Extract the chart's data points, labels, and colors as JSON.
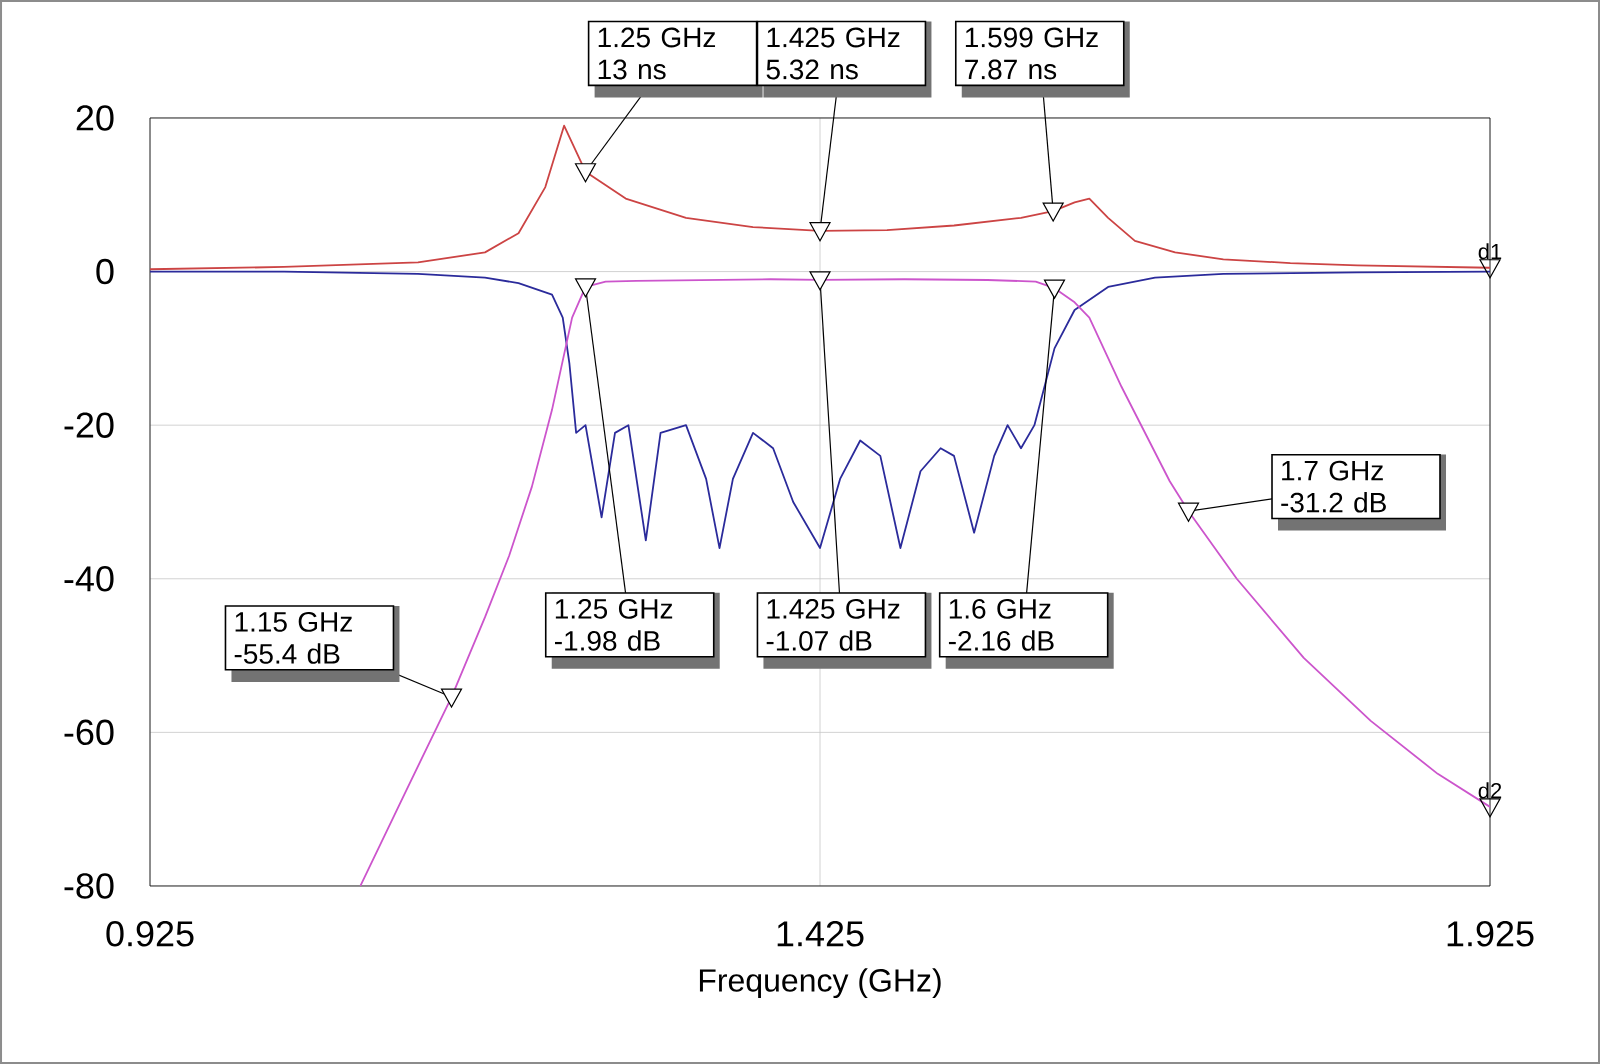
{
  "chart_data": {
    "type": "line",
    "xlabel": "Frequency (GHz)",
    "xlim": [
      0.925,
      1.925
    ],
    "ylim": [
      -80,
      20
    ],
    "xticks": [
      0.925,
      1.425,
      1.925
    ],
    "yticks": [
      -80,
      -60,
      -40,
      -20,
      0,
      20
    ],
    "grid": true,
    "line_style": "solid",
    "series": [
      {
        "color": "#cc4444",
        "x": [
          0.925,
          1.025,
          1.125,
          1.175,
          1.2,
          1.22,
          1.234,
          1.25,
          1.28,
          1.325,
          1.375,
          1.425,
          1.475,
          1.525,
          1.575,
          1.599,
          1.615,
          1.626,
          1.64,
          1.66,
          1.69,
          1.726,
          1.776,
          1.826,
          1.925
        ],
        "values": [
          0.3,
          0.6,
          1.2,
          2.5,
          5,
          11,
          19,
          13,
          9.5,
          7,
          5.8,
          5.3,
          5.4,
          6,
          7,
          7.87,
          9,
          9.5,
          7,
          4,
          2.5,
          1.6,
          1.1,
          0.8,
          0.5
        ]
      },
      {
        "color": "#2b2b9b",
        "x": [
          0.925,
          1.025,
          1.125,
          1.175,
          1.2,
          1.225,
          1.233,
          1.238,
          1.243,
          1.25,
          1.262,
          1.272,
          1.282,
          1.295,
          1.306,
          1.325,
          1.34,
          1.35,
          1.36,
          1.375,
          1.39,
          1.405,
          1.425,
          1.44,
          1.455,
          1.47,
          1.485,
          1.5,
          1.515,
          1.525,
          1.54,
          1.555,
          1.565,
          1.575,
          1.585,
          1.6,
          1.615,
          1.64,
          1.675,
          1.726,
          1.826,
          1.925
        ],
        "values": [
          0,
          0,
          -0.3,
          -0.8,
          -1.5,
          -3,
          -6,
          -12,
          -21,
          -20,
          -32,
          -21,
          -20,
          -35,
          -21,
          -20,
          -27,
          -36,
          -27,
          -21,
          -23,
          -30,
          -36,
          -27,
          -22,
          -24,
          -36,
          -26,
          -23,
          -24,
          -34,
          -24,
          -20,
          -23,
          -20,
          -10,
          -5,
          -2,
          -0.8,
          -0.3,
          -0.1,
          0
        ]
      },
      {
        "color": "#cc55cc",
        "x": [
          1.082,
          1.115,
          1.15,
          1.175,
          1.193,
          1.21,
          1.225,
          1.24,
          1.25,
          1.265,
          1.288,
          1.388,
          1.425,
          1.488,
          1.55,
          1.586,
          1.6,
          1.615,
          1.626,
          1.65,
          1.686,
          1.7,
          1.736,
          1.786,
          1.836,
          1.886,
          1.925
        ],
        "values": [
          -80,
          -68,
          -55.4,
          -45,
          -37,
          -28,
          -18,
          -6,
          -1.98,
          -1.3,
          -1.2,
          -1,
          -1.07,
          -1,
          -1.1,
          -1.3,
          -2.16,
          -4,
          -6,
          -15,
          -27.3,
          -31.2,
          -40,
          -50.3,
          -58.5,
          -65.4,
          -69.7
        ]
      }
    ],
    "annotations": [
      {
        "text": "1.25 GHz 13 ns",
        "x": 1.25,
        "y": 13
      },
      {
        "text": "1.425 GHz 5.32 ns",
        "x": 1.425,
        "y": 5.32
      },
      {
        "text": "1.599 GHz 7.87 ns",
        "x": 1.599,
        "y": 7.87
      },
      {
        "text": "1.15 GHz -55.4 dB",
        "x": 1.15,
        "y": -55.4
      },
      {
        "text": "1.25 GHz -1.98 dB",
        "x": 1.25,
        "y": -1.98
      },
      {
        "text": "1.425 GHz -1.07 dB",
        "x": 1.425,
        "y": -1.07
      },
      {
        "text": "1.6 GHz -2.16 dB",
        "x": 1.6,
        "y": -2.16
      },
      {
        "text": "1.7 GHz -31.2 dB",
        "x": 1.7,
        "y": -31.2
      },
      {
        "text": "d1",
        "x": 1.925,
        "y": 0.5
      },
      {
        "text": "d2",
        "x": 1.925,
        "y": -69.7
      }
    ]
  }
}
